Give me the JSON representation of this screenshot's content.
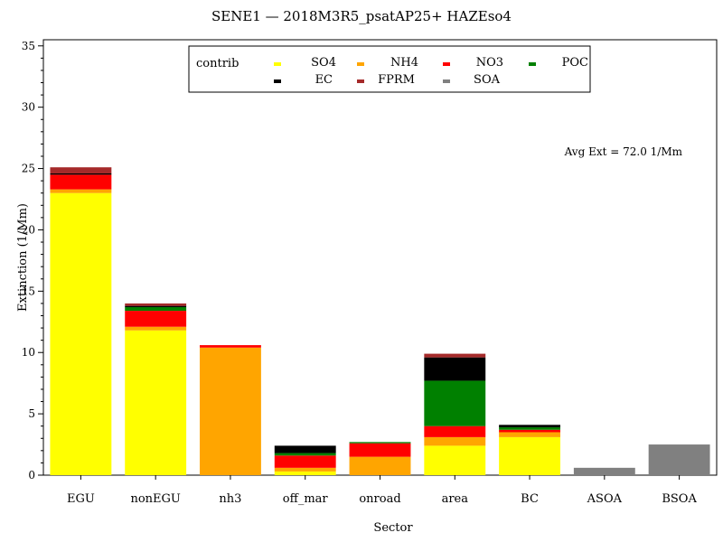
{
  "chart_data": {
    "type": "bar",
    "stacked": true,
    "title": "SENE1 —  2018M3R5_psatAP25+ HAZEso4",
    "xlabel": "Sector",
    "ylabel": "Extinction (1/Mm)",
    "ylim": [
      0,
      35.5
    ],
    "yticks": [
      0,
      5,
      10,
      15,
      20,
      25,
      30,
      35
    ],
    "grid": false,
    "legend": {
      "title": "contrib",
      "placement": "top-center"
    },
    "annotation": "Avg Ext =  72.0 1/Mm",
    "categories": [
      "EGU",
      "nonEGU",
      "nh3",
      "off_mar",
      "onroad",
      "area",
      "BC",
      "ASOA",
      "BSOA"
    ],
    "series": [
      {
        "name": "SO4",
        "color": "#ffff00",
        "values": [
          23.0,
          11.8,
          0.0,
          0.3,
          0.0,
          2.4,
          3.1,
          0.0,
          0.0
        ]
      },
      {
        "name": "NH4",
        "color": "#ffa500",
        "values": [
          0.3,
          0.3,
          10.4,
          0.3,
          1.5,
          0.7,
          0.4,
          0.0,
          0.0
        ]
      },
      {
        "name": "NO3",
        "color": "#ff0000",
        "values": [
          1.2,
          1.3,
          0.2,
          1.0,
          1.1,
          0.9,
          0.2,
          0.0,
          0.0
        ]
      },
      {
        "name": "POC",
        "color": "#008000",
        "values": [
          0.0,
          0.3,
          0.0,
          0.2,
          0.1,
          3.7,
          0.2,
          0.0,
          0.0
        ]
      },
      {
        "name": "EC",
        "color": "#000000",
        "values": [
          0.1,
          0.1,
          0.0,
          0.6,
          0.0,
          1.9,
          0.2,
          0.0,
          0.0
        ]
      },
      {
        "name": "FPRM",
        "color": "#a52a2a",
        "values": [
          0.5,
          0.2,
          0.0,
          0.0,
          0.0,
          0.3,
          0.0,
          0.0,
          0.0
        ]
      },
      {
        "name": "SOA",
        "color": "#808080",
        "values": [
          0.0,
          0.0,
          0.0,
          0.0,
          0.0,
          0.0,
          0.0,
          0.6,
          2.5
        ]
      }
    ]
  }
}
